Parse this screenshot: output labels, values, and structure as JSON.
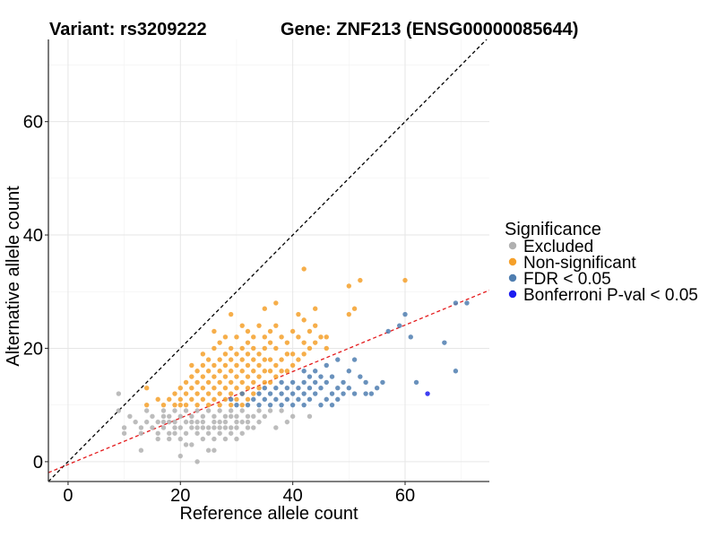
{
  "titles": {
    "variant": "Variant: rs3209222",
    "gene": "Gene: ZNF213 (ENSG00000085644)"
  },
  "chart_data": {
    "type": "scatter",
    "xlabel": "Reference allele count",
    "ylabel": "Alternative allele count",
    "xlim": [
      -3.5,
      75
    ],
    "ylim": [
      -3.5,
      74.5
    ],
    "xticks": [
      0,
      20,
      40,
      60
    ],
    "yticks": [
      0,
      20,
      40,
      60
    ],
    "grid": true,
    "reference_lines": [
      {
        "name": "identity",
        "slope": 1,
        "intercept": 0,
        "color": "#000000",
        "dash": "dashed"
      },
      {
        "name": "fitted",
        "slope": 0.41,
        "intercept": -0.5,
        "color": "#e41a1c",
        "dash": "dashed"
      }
    ],
    "legend": {
      "title": "Significance",
      "placement": "right",
      "entries": [
        {
          "label": "Excluded",
          "color": "#b0b0b0"
        },
        {
          "label": "Non-significant",
          "color": "#f5a02a"
        },
        {
          "label": "FDR < 0.05",
          "color": "#4f7eb0"
        },
        {
          "label": "Bonferroni P-val < 0.05",
          "color": "#1c1cf0"
        }
      ]
    },
    "series": [
      {
        "name": "Excluded",
        "color": "#b0b0b0",
        "points": [
          [
            9,
            12
          ],
          [
            9,
            9
          ],
          [
            10,
            6
          ],
          [
            10,
            5
          ],
          [
            11,
            8
          ],
          [
            12,
            7
          ],
          [
            13,
            2
          ],
          [
            13,
            5
          ],
          [
            13,
            6
          ],
          [
            14,
            7
          ],
          [
            14,
            9
          ],
          [
            15,
            6
          ],
          [
            15,
            8
          ],
          [
            16,
            7
          ],
          [
            16,
            5
          ],
          [
            16,
            4
          ],
          [
            17,
            6
          ],
          [
            17,
            7
          ],
          [
            17,
            8
          ],
          [
            17,
            9
          ],
          [
            18,
            4
          ],
          [
            18,
            5
          ],
          [
            18,
            7
          ],
          [
            18,
            8
          ],
          [
            19,
            5
          ],
          [
            19,
            6
          ],
          [
            19,
            7
          ],
          [
            19,
            9
          ],
          [
            20,
            1
          ],
          [
            20,
            4
          ],
          [
            20,
            6
          ],
          [
            20,
            8
          ],
          [
            21,
            5
          ],
          [
            21,
            7
          ],
          [
            21,
            9
          ],
          [
            22,
            3
          ],
          [
            22,
            6
          ],
          [
            22,
            7
          ],
          [
            22,
            8
          ],
          [
            23,
            5
          ],
          [
            23,
            6
          ],
          [
            23,
            7
          ],
          [
            23,
            9
          ],
          [
            24,
            4
          ],
          [
            24,
            6
          ],
          [
            24,
            7
          ],
          [
            24,
            8
          ],
          [
            25,
            2
          ],
          [
            25,
            5
          ],
          [
            25,
            6
          ],
          [
            25,
            9
          ],
          [
            26,
            4
          ],
          [
            26,
            6
          ],
          [
            26,
            7
          ],
          [
            26,
            8
          ],
          [
            27,
            5
          ],
          [
            27,
            6
          ],
          [
            27,
            7
          ],
          [
            27,
            9
          ],
          [
            28,
            4
          ],
          [
            28,
            6
          ],
          [
            28,
            7
          ],
          [
            28,
            8
          ],
          [
            29,
            5
          ],
          [
            29,
            6
          ],
          [
            29,
            8
          ],
          [
            29,
            9
          ],
          [
            30,
            4
          ],
          [
            30,
            6
          ],
          [
            30,
            7
          ],
          [
            30,
            8
          ],
          [
            31,
            5
          ],
          [
            31,
            7
          ],
          [
            31,
            9
          ],
          [
            32,
            6
          ],
          [
            32,
            7
          ],
          [
            32,
            8
          ],
          [
            33,
            6
          ],
          [
            33,
            8
          ],
          [
            34,
            7
          ],
          [
            34,
            9
          ],
          [
            35,
            8
          ],
          [
            36,
            9
          ],
          [
            37,
            6
          ],
          [
            38,
            9
          ],
          [
            39,
            7
          ],
          [
            40,
            8
          ],
          [
            43,
            8
          ],
          [
            23,
            0
          ],
          [
            21,
            3
          ],
          [
            26,
            2
          ]
        ]
      },
      {
        "name": "Non-significant",
        "color": "#f5a02a",
        "points": [
          [
            14,
            10
          ],
          [
            14,
            13
          ],
          [
            16,
            11
          ],
          [
            17,
            10
          ],
          [
            18,
            11
          ],
          [
            19,
            10
          ],
          [
            19,
            12
          ],
          [
            20,
            10
          ],
          [
            20,
            11
          ],
          [
            20,
            13
          ],
          [
            21,
            10
          ],
          [
            21,
            12
          ],
          [
            21,
            14
          ],
          [
            22,
            11
          ],
          [
            22,
            13
          ],
          [
            22,
            15
          ],
          [
            22,
            17
          ],
          [
            23,
            10
          ],
          [
            23,
            12
          ],
          [
            23,
            14
          ],
          [
            23,
            16
          ],
          [
            24,
            11
          ],
          [
            24,
            13
          ],
          [
            24,
            15
          ],
          [
            24,
            17
          ],
          [
            24,
            19
          ],
          [
            25,
            10
          ],
          [
            25,
            12
          ],
          [
            25,
            14
          ],
          [
            25,
            16
          ],
          [
            25,
            18
          ],
          [
            26,
            11
          ],
          [
            26,
            13
          ],
          [
            26,
            15
          ],
          [
            26,
            17
          ],
          [
            26,
            20
          ],
          [
            26,
            23
          ],
          [
            27,
            10
          ],
          [
            27,
            12
          ],
          [
            27,
            14
          ],
          [
            27,
            16
          ],
          [
            27,
            18
          ],
          [
            27,
            21
          ],
          [
            28,
            11
          ],
          [
            28,
            13
          ],
          [
            28,
            15
          ],
          [
            28,
            17
          ],
          [
            28,
            19
          ],
          [
            28,
            22
          ],
          [
            29,
            10
          ],
          [
            29,
            12
          ],
          [
            29,
            14
          ],
          [
            29,
            16
          ],
          [
            29,
            18
          ],
          [
            29,
            20
          ],
          [
            29,
            26
          ],
          [
            30,
            11
          ],
          [
            30,
            13
          ],
          [
            30,
            15
          ],
          [
            30,
            17
          ],
          [
            30,
            19
          ],
          [
            30,
            22
          ],
          [
            31,
            10
          ],
          [
            31,
            12
          ],
          [
            31,
            14
          ],
          [
            31,
            16
          ],
          [
            31,
            18
          ],
          [
            31,
            20
          ],
          [
            31,
            24
          ],
          [
            32,
            11
          ],
          [
            32,
            13
          ],
          [
            32,
            15
          ],
          [
            32,
            17
          ],
          [
            32,
            19
          ],
          [
            32,
            21
          ],
          [
            32,
            23
          ],
          [
            33,
            12
          ],
          [
            33,
            14
          ],
          [
            33,
            16
          ],
          [
            33,
            18
          ],
          [
            33,
            20
          ],
          [
            33,
            22
          ],
          [
            34,
            13
          ],
          [
            34,
            15
          ],
          [
            34,
            17
          ],
          [
            34,
            19
          ],
          [
            34,
            24
          ],
          [
            35,
            14
          ],
          [
            35,
            16
          ],
          [
            35,
            18
          ],
          [
            35,
            20
          ],
          [
            35,
            22
          ],
          [
            35,
            27
          ],
          [
            36,
            14
          ],
          [
            36,
            16
          ],
          [
            36,
            18
          ],
          [
            36,
            21
          ],
          [
            36,
            23
          ],
          [
            37,
            15
          ],
          [
            37,
            17
          ],
          [
            37,
            20
          ],
          [
            37,
            24
          ],
          [
            37,
            28
          ],
          [
            38,
            16
          ],
          [
            38,
            18
          ],
          [
            38,
            22
          ],
          [
            39,
            16
          ],
          [
            39,
            19
          ],
          [
            39,
            21
          ],
          [
            40,
            17
          ],
          [
            40,
            19
          ],
          [
            40,
            23
          ],
          [
            41,
            18
          ],
          [
            41,
            22
          ],
          [
            41,
            26
          ],
          [
            42,
            19
          ],
          [
            42,
            21
          ],
          [
            42,
            25
          ],
          [
            42,
            34
          ],
          [
            43,
            20
          ],
          [
            43,
            23
          ],
          [
            44,
            21
          ],
          [
            44,
            24
          ],
          [
            44,
            27
          ],
          [
            45,
            22
          ],
          [
            46,
            20
          ],
          [
            46,
            22
          ],
          [
            50,
            26
          ],
          [
            50,
            31
          ],
          [
            51,
            27
          ],
          [
            52,
            32
          ],
          [
            60,
            32
          ]
        ]
      },
      {
        "name": "FDR < 0.05",
        "color": "#4f7eb0",
        "points": [
          [
            29,
            11
          ],
          [
            30,
            10
          ],
          [
            31,
            12
          ],
          [
            32,
            10
          ],
          [
            33,
            11
          ],
          [
            34,
            12
          ],
          [
            34,
            10
          ],
          [
            35,
            13
          ],
          [
            35,
            11
          ],
          [
            36,
            10
          ],
          [
            36,
            12
          ],
          [
            37,
            11
          ],
          [
            37,
            13
          ],
          [
            38,
            10
          ],
          [
            38,
            12
          ],
          [
            38,
            14
          ],
          [
            39,
            11
          ],
          [
            39,
            13
          ],
          [
            40,
            10
          ],
          [
            40,
            12
          ],
          [
            40,
            14
          ],
          [
            41,
            11
          ],
          [
            41,
            13
          ],
          [
            42,
            10
          ],
          [
            42,
            12
          ],
          [
            42,
            14
          ],
          [
            42,
            16
          ],
          [
            43,
            11
          ],
          [
            43,
            13
          ],
          [
            43,
            15
          ],
          [
            44,
            12
          ],
          [
            44,
            14
          ],
          [
            44,
            16
          ],
          [
            45,
            10
          ],
          [
            45,
            13
          ],
          [
            45,
            15
          ],
          [
            46,
            11
          ],
          [
            46,
            14
          ],
          [
            46,
            17
          ],
          [
            47,
            10
          ],
          [
            47,
            12
          ],
          [
            47,
            15
          ],
          [
            48,
            11
          ],
          [
            48,
            13
          ],
          [
            48,
            18
          ],
          [
            49,
            12
          ],
          [
            49,
            14
          ],
          [
            50,
            13
          ],
          [
            50,
            16
          ],
          [
            51,
            12
          ],
          [
            51,
            18
          ],
          [
            52,
            15
          ],
          [
            53,
            12
          ],
          [
            53,
            14
          ],
          [
            54,
            12
          ],
          [
            55,
            13
          ],
          [
            56,
            14
          ],
          [
            57,
            23
          ],
          [
            59,
            24
          ],
          [
            60,
            26
          ],
          [
            61,
            22
          ],
          [
            62,
            14
          ],
          [
            67,
            21
          ],
          [
            69,
            16
          ],
          [
            69,
            28
          ],
          [
            71,
            28
          ]
        ]
      },
      {
        "name": "Bonferroni P-val < 0.05",
        "color": "#1c1cf0",
        "points": [
          [
            64,
            12
          ]
        ]
      }
    ]
  }
}
